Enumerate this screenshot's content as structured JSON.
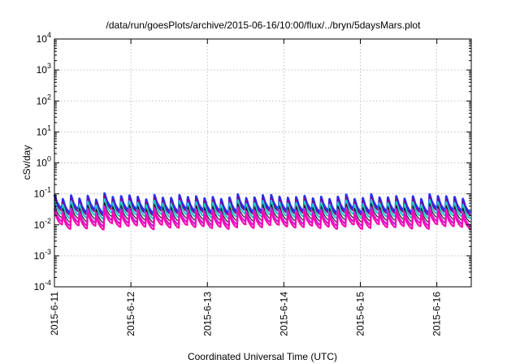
{
  "chart_data": {
    "type": "line",
    "title": "/data/run/goesPlots/archive/2015-06-16/10:00/flux/../bryn/5daysMars.plot",
    "xlabel": "Coordinated Universal Time (UTC)",
    "ylabel": "cSv/day",
    "yscale": "log",
    "ylim": [
      0.0001,
      10000
    ],
    "xlim": [
      0,
      5.45
    ],
    "x_unit": "days since 2015-6-11 00:00 UTC",
    "grid": true,
    "legend": "none",
    "x_ticks": [
      {
        "value": 0,
        "label": "2015-6-11"
      },
      {
        "value": 1,
        "label": "2015-6-12"
      },
      {
        "value": 2,
        "label": "2015-6-13"
      },
      {
        "value": 3,
        "label": "2015-6-14"
      },
      {
        "value": 4,
        "label": "2015-6-15"
      },
      {
        "value": 5,
        "label": "2015-6-16"
      }
    ],
    "y_ticks": [
      {
        "value": 0.0001,
        "base": "10",
        "exp": "-4"
      },
      {
        "value": 0.001,
        "base": "10",
        "exp": "-3"
      },
      {
        "value": 0.01,
        "base": "10",
        "exp": "-2"
      },
      {
        "value": 0.1,
        "base": "10",
        "exp": "-1"
      },
      {
        "value": 1,
        "base": "10",
        "exp": "0"
      },
      {
        "value": 10,
        "base": "10",
        "exp": "1"
      },
      {
        "value": 100,
        "base": "10",
        "exp": "2"
      },
      {
        "value": 1000,
        "base": "10",
        "exp": "3"
      },
      {
        "value": 10000,
        "base": "10",
        "exp": "4"
      }
    ],
    "pattern": {
      "cycles": 50,
      "cycle_length_days": 0.109,
      "peaks": [
        0.095,
        0.068,
        0.088,
        0.07,
        0.086,
        0.065,
        0.104,
        0.079,
        0.084,
        0.088,
        0.08,
        0.066,
        0.092,
        0.075,
        0.074,
        0.091,
        0.078,
        0.083,
        0.072,
        0.079,
        0.068,
        0.076,
        0.096,
        0.073,
        0.077,
        0.09,
        0.092,
        0.081,
        0.075,
        0.078,
        0.086,
        0.072,
        0.08,
        0.068,
        0.081,
        0.094,
        0.068,
        0.073,
        0.097,
        0.077,
        0.077,
        0.084,
        0.07,
        0.083,
        0.068,
        0.097,
        0.084,
        0.083,
        0.079,
        0.069
      ],
      "trough_ratio": 0.36
    },
    "series": [
      {
        "color": "#2030ff",
        "scale": 1.0,
        "width": 2.8
      },
      {
        "color": "#800090",
        "scale": 0.84,
        "width": 1.8
      },
      {
        "color": "#20c8c8",
        "scale": 0.66,
        "width": 2.2
      },
      {
        "color": "#181818",
        "scale": 0.5,
        "width": 1.2
      },
      {
        "color": "#d020d0",
        "scale": 0.38,
        "width": 2.4
      },
      {
        "color": "#ff00b0",
        "scale": 0.3,
        "width": 2.0
      }
    ]
  }
}
